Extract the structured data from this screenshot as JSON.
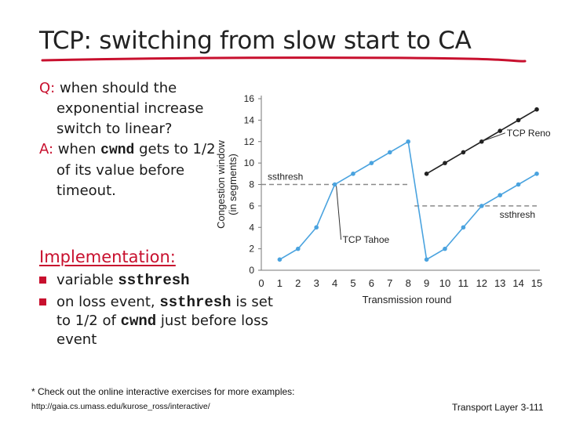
{
  "title": "TCP: switching from slow start to CA",
  "qa": {
    "q_label": "Q:",
    "q_text": "when should the exponential increase switch to linear?",
    "a_label": "A:",
    "a_text_pre": "when",
    "a_code": "cwnd",
    "a_text_post": "gets to 1/2 of its value before timeout."
  },
  "implementation": {
    "heading": "Implementation:",
    "bullet1_pre": "variable",
    "bullet1_code": "ssthresh",
    "bullet2_pre": "on loss event,",
    "bullet2_code1": "ssthresh",
    "bullet2_mid": "is set to 1/2 of",
    "bullet2_code2": "cwnd",
    "bullet2_post": "just before loss event"
  },
  "note": {
    "text": "* Check out the online interactive exercises for more examples:",
    "url": "http://gaia.cs.umass.edu/kurose_ross/interactive/"
  },
  "footer": "Transport Layer 3-111",
  "colors": {
    "accent": "#c8102e",
    "tahoe": "#4aa3df",
    "reno": "#222222",
    "threshold": "#8a8a8a"
  },
  "chart_data": {
    "type": "line",
    "xlabel": "Transmission round",
    "ylabel_line1": "Congestion window",
    "ylabel_line2": "(in segments)",
    "xlim": [
      0,
      15
    ],
    "ylim": [
      0,
      16
    ],
    "x_ticks": [
      0,
      1,
      2,
      3,
      4,
      5,
      6,
      7,
      8,
      9,
      10,
      11,
      12,
      13,
      14,
      15
    ],
    "y_ticks": [
      0,
      2,
      4,
      6,
      8,
      10,
      12,
      14,
      16
    ],
    "series": [
      {
        "name": "TCP Tahoe",
        "x": [
          1,
          2,
          3,
          4,
          5,
          6,
          7,
          8,
          9,
          10,
          11,
          12,
          13,
          14,
          15
        ],
        "y": [
          1,
          2,
          4,
          8,
          9,
          10,
          11,
          12,
          1,
          2,
          4,
          6,
          7,
          8,
          9
        ]
      },
      {
        "name": "TCP Reno",
        "x": [
          9,
          10,
          11,
          12,
          13,
          14,
          15
        ],
        "y": [
          9,
          10,
          11,
          12,
          13,
          14,
          15
        ]
      }
    ],
    "thresholds": [
      {
        "label": "ssthresh",
        "y": 8,
        "x_from": 0,
        "x_to": 8
      },
      {
        "label": "ssthresh",
        "y": 6,
        "x_from": 8,
        "x_to": 15
      }
    ],
    "annotations": [
      {
        "text": "TCP Reno",
        "x": 12,
        "y": 12
      },
      {
        "text": "TCP Tahoe",
        "x": 4,
        "y": 8
      }
    ]
  }
}
